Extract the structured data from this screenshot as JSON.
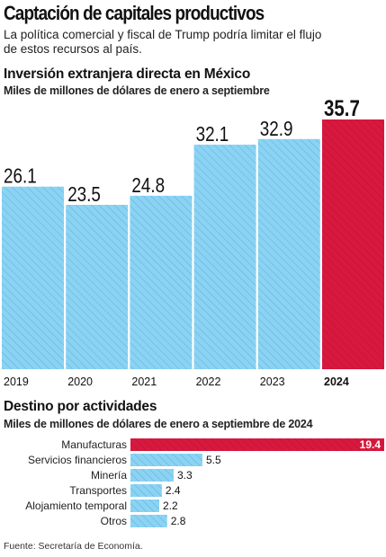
{
  "header": {
    "title": "Captación de capitales productivos",
    "subtitle": "La política comercial y fiscal de Trump podría limitar el flujo de estos recursos al país."
  },
  "colors": {
    "bar_blue": "#8cd3f3",
    "bar_red": "#d8193f",
    "hatch": "#5fb6df"
  },
  "source": "Fuente: Secretaría de Economía.",
  "chart_data": [
    {
      "type": "bar",
      "title": "Inversión extranjera directa en México",
      "subtitle": "Miles de millones de dólares de enero a septiembre",
      "categories": [
        "2019",
        "2020",
        "2021",
        "2022",
        "2023",
        "2024"
      ],
      "values": [
        26.1,
        23.5,
        24.8,
        32.1,
        32.9,
        35.7
      ],
      "value_labels": [
        "26.1",
        "23.5",
        "24.8",
        "32.1",
        "32.9",
        "35.7"
      ],
      "highlight": "2024"
    },
    {
      "type": "bar",
      "orientation": "horizontal",
      "title": "Destino por actividades",
      "subtitle": "Miles de millones de dólares de enero a septiembre de 2024",
      "categories": [
        "Manufacturas",
        "Servicios financieros",
        "Minería",
        "Transportes",
        "Alojamiento temporal",
        "Otros"
      ],
      "values": [
        19.4,
        5.5,
        3.3,
        2.4,
        2.2,
        2.8
      ],
      "value_labels": [
        "19.4",
        "5.5",
        "3.3",
        "2.4",
        "2.2",
        "2.8"
      ],
      "highlight": "Manufacturas"
    }
  ]
}
